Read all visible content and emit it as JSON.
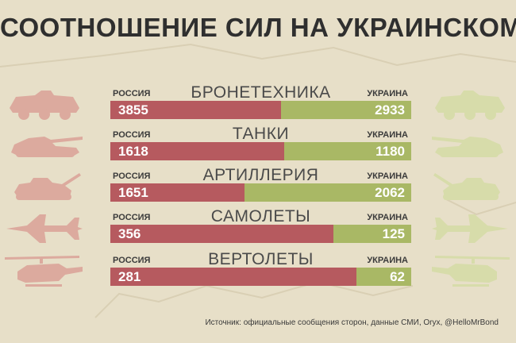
{
  "title": "СООТНОШЕНИЕ СИЛ НА УКРАИНСКОМ ТВД",
  "source": "Источник: официальные сообщения сторон, данные СМИ, Oryx, @HelloMrBond",
  "colors": {
    "russia": "#b65a5f",
    "ukraine": "#a9b865",
    "background": "#e7dfc8",
    "icon_russia": "#dcaa9e",
    "icon_ukraine": "#d7dcaa"
  },
  "chart_data": {
    "type": "bar",
    "orientation": "horizontal-stacked-100%",
    "categories": [
      "БРОНЕТЕХНИКА",
      "ТАНКИ",
      "АРТИЛЛЕРИЯ",
      "САМОЛЕТЫ",
      "ВЕРТОЛЕТЫ"
    ],
    "series": [
      {
        "name": "РОССИЯ",
        "values": [
          3855,
          1618,
          1651,
          356,
          281
        ]
      },
      {
        "name": "УКРАИНА",
        "values": [
          2933,
          1180,
          2062,
          125,
          62
        ]
      }
    ],
    "icons": [
      "apc-icon",
      "tank-icon",
      "artillery-icon",
      "jet-icon",
      "helicopter-icon"
    ]
  }
}
